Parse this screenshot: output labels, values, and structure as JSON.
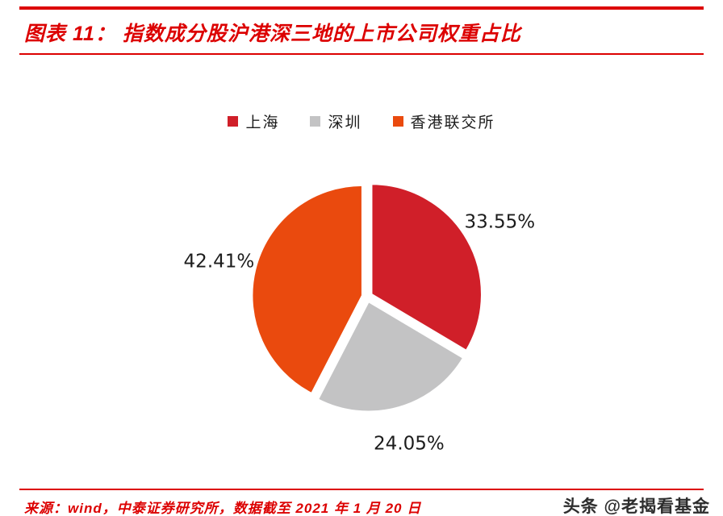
{
  "header": {
    "title": "图表 11：  指数成分股沪港深三地的上市公司权重占比"
  },
  "chart_data": {
    "type": "pie",
    "title": "指数成分股沪港深三地的上市公司权重占比",
    "legend_position": "top",
    "direction": "clockwise",
    "start_angle_deg": 0,
    "slices": [
      {
        "name": "上海",
        "value": 33.55,
        "label": "33.55%",
        "color": "#d01f29"
      },
      {
        "name": "深圳",
        "value": 24.05,
        "label": "24.05%",
        "color": "#c3c3c4"
      },
      {
        "name": "香港联交所",
        "value": 42.41,
        "label": "42.41%",
        "color": "#ea4a0e"
      }
    ]
  },
  "footer": {
    "source": "来源：wind，中泰证券研究所，数据截至 2021 年 1 月 20 日"
  },
  "watermark": {
    "text": "头条 @老揭看基金"
  },
  "theme": {
    "accent_red": "#dc0000",
    "label_text": "#1c1c1c"
  }
}
